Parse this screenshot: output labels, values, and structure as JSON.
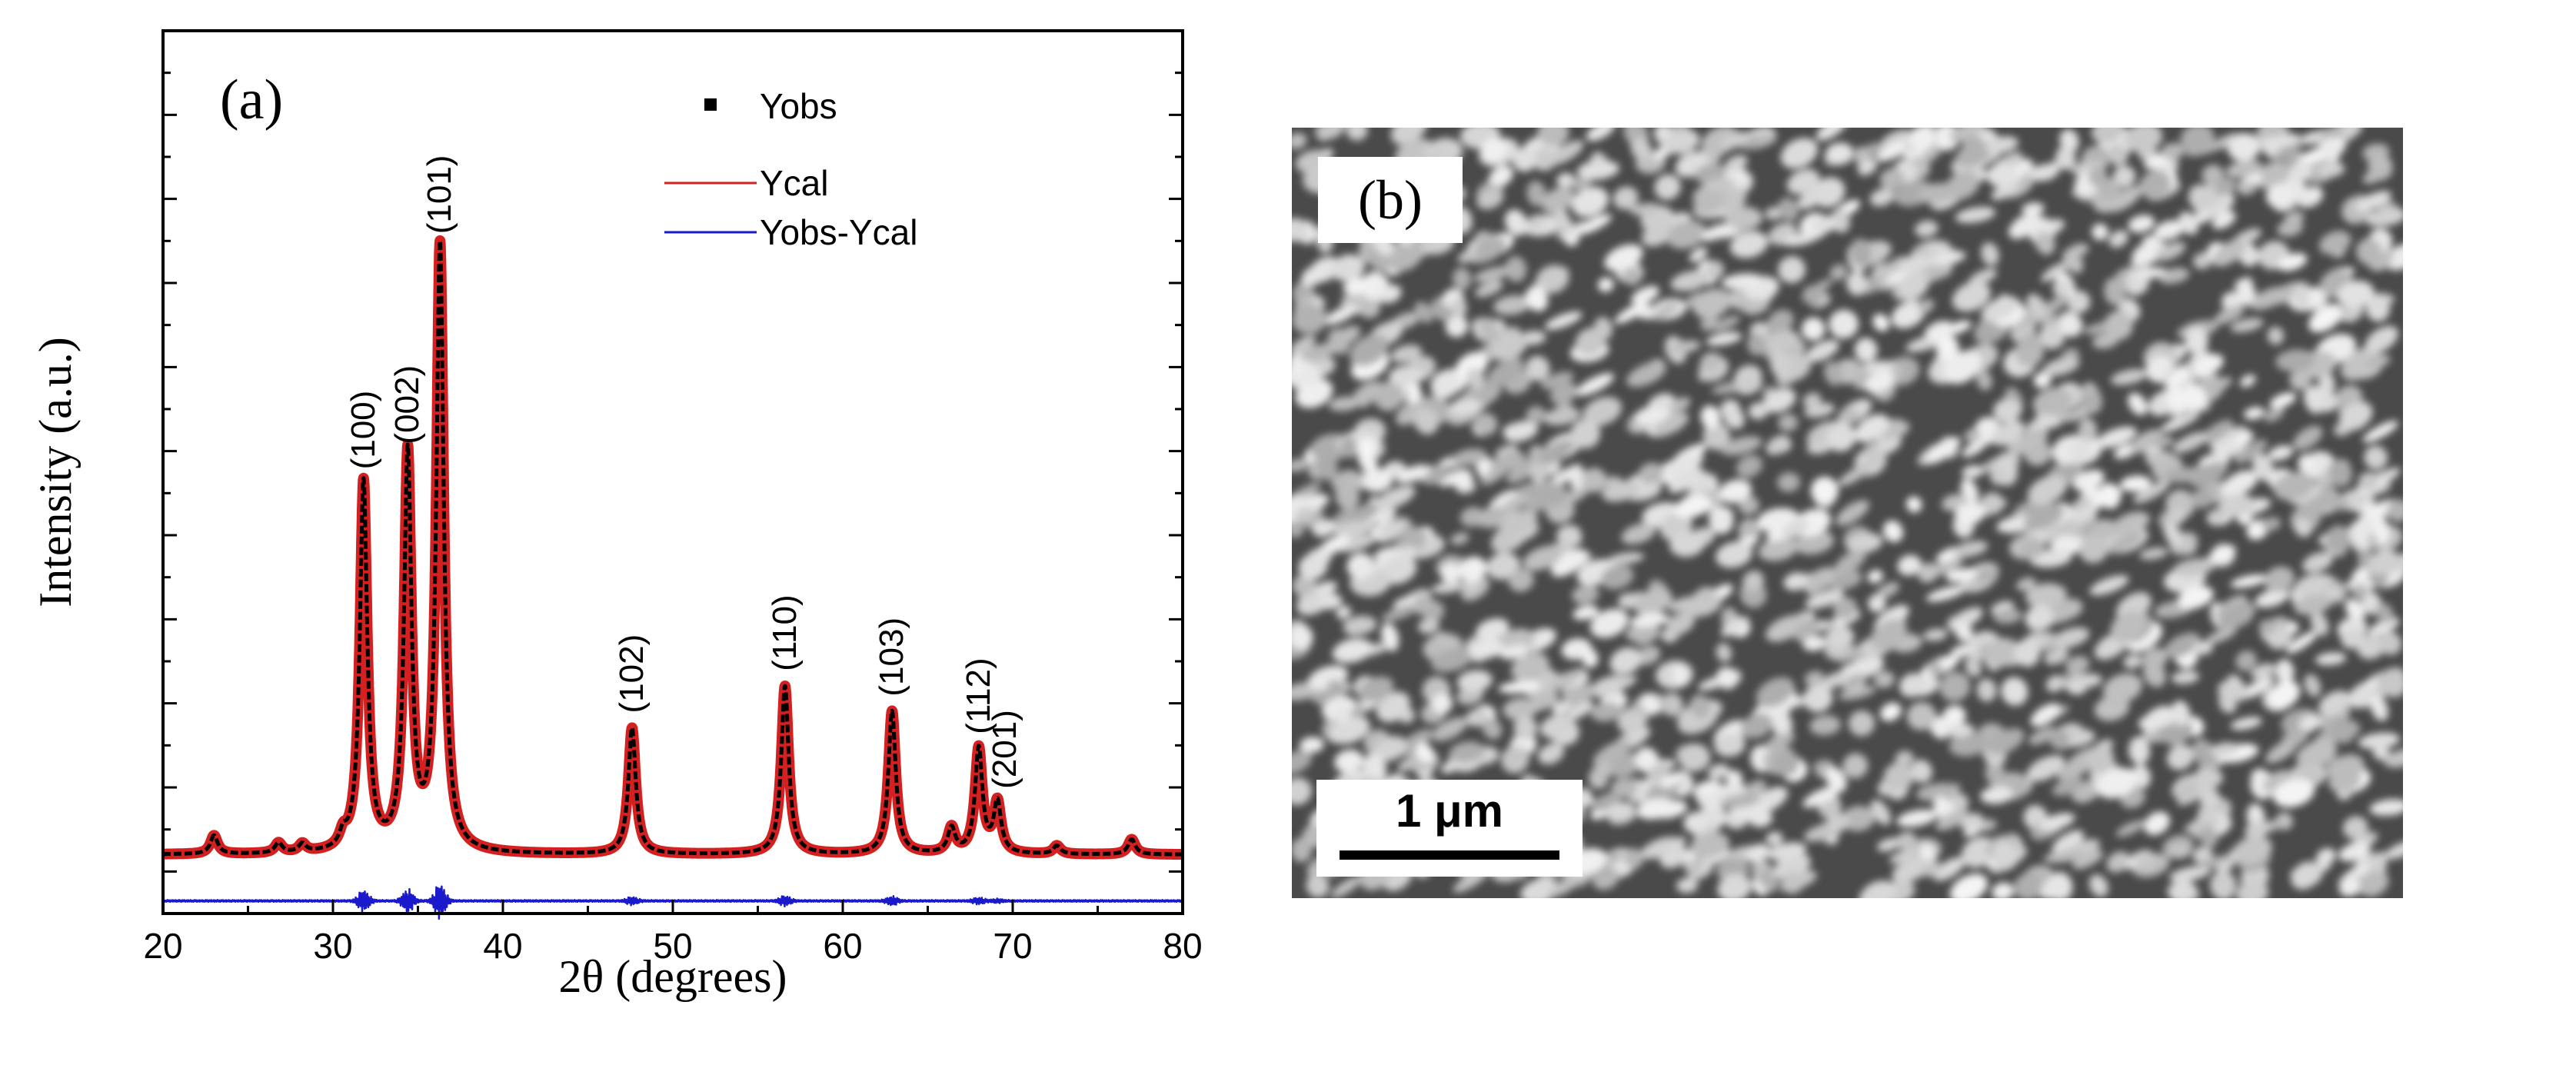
{
  "chart_data": {
    "type": "line",
    "panel_label": "(a)",
    "xlabel": "2θ (degrees)",
    "ylabel": "Intensity (a.u.)",
    "xlim": [
      20,
      80
    ],
    "ylim": [
      -0.5,
      10
    ],
    "xticks": [
      20,
      30,
      40,
      50,
      60,
      70,
      80
    ],
    "xtick_labels": [
      "20",
      "30",
      "40",
      "50",
      "60",
      "70",
      "80"
    ],
    "baseline": 0.2,
    "difference_offset": -0.35,
    "legend": [
      {
        "name": "Yobs",
        "marker": "square",
        "color": "#000000"
      },
      {
        "name": "Ycal",
        "marker": "line",
        "color": "#d42020"
      },
      {
        "name": "Yobs-Ycal",
        "marker": "line",
        "color": "#1a1acc"
      }
    ],
    "peaks": [
      {
        "hkl": "(100)",
        "two_theta": 31.8,
        "intensity": 4.4
      },
      {
        "hkl": "(002)",
        "two_theta": 34.4,
        "intensity": 4.7
      },
      {
        "hkl": "(101)",
        "two_theta": 36.3,
        "intensity": 7.2
      },
      {
        "hkl": "(102)",
        "two_theta": 47.6,
        "intensity": 1.5
      },
      {
        "hkl": "(110)",
        "two_theta": 56.6,
        "intensity": 2.0
      },
      {
        "hkl": "(103)",
        "two_theta": 62.9,
        "intensity": 1.7
      },
      {
        "hkl": "(112)",
        "two_theta": 68.0,
        "intensity": 1.25
      },
      {
        "hkl": "(201)",
        "two_theta": 69.1,
        "intensity": 0.6
      }
    ],
    "minor_peaks": [
      {
        "two_theta": 23.0,
        "intensity": 0.22
      },
      {
        "two_theta": 26.8,
        "intensity": 0.12
      },
      {
        "two_theta": 28.2,
        "intensity": 0.1
      },
      {
        "two_theta": 30.6,
        "intensity": 0.15
      },
      {
        "two_theta": 66.4,
        "intensity": 0.3
      },
      {
        "two_theta": 72.6,
        "intensity": 0.1
      },
      {
        "two_theta": 77.0,
        "intensity": 0.18
      }
    ]
  },
  "sem": {
    "panel_label": "(b)",
    "scale_bar": "1 μm"
  }
}
